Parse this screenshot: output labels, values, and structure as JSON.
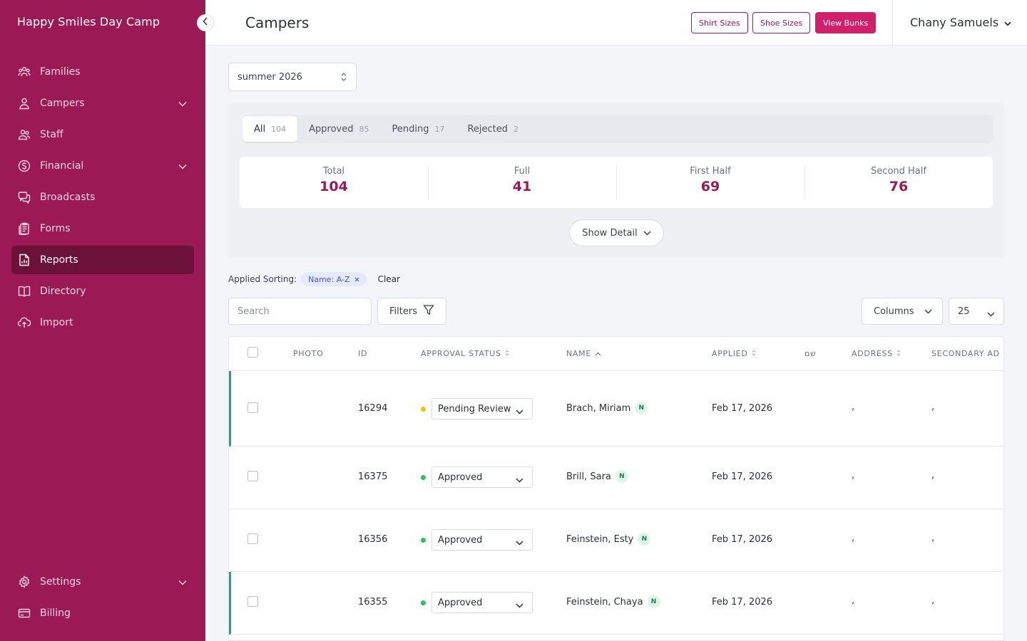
{
  "sidebar": {
    "brand": "Happy Smiles Day Camp",
    "items": [
      {
        "label": "Families",
        "icon": "families-icon"
      },
      {
        "label": "Campers",
        "icon": "camper-icon",
        "expandable": true
      },
      {
        "label": "Staff",
        "icon": "staff-icon"
      },
      {
        "label": "Financial",
        "icon": "dollar-icon",
        "expandable": true
      },
      {
        "label": "Broadcasts",
        "icon": "chat-icon"
      },
      {
        "label": "Forms",
        "icon": "forms-icon"
      },
      {
        "label": "Reports",
        "icon": "report-icon",
        "active": true
      },
      {
        "label": "Directory",
        "icon": "book-icon"
      },
      {
        "label": "Import",
        "icon": "upload-icon"
      }
    ],
    "bottom_items": [
      {
        "label": "Settings",
        "icon": "gear-icon",
        "expandable": true
      },
      {
        "label": "Billing",
        "icon": "card-icon"
      }
    ]
  },
  "header": {
    "title": "Campers",
    "buttons": {
      "shirt": "Shirt Sizes",
      "shoe": "Shoe Sizes",
      "bunks": "View Bunks"
    },
    "user": "Chany Samuels"
  },
  "season": {
    "value": "summer 2026"
  },
  "tabs": [
    {
      "label": "All",
      "count": "104"
    },
    {
      "label": "Approved",
      "count": "85"
    },
    {
      "label": "Pending",
      "count": "17"
    },
    {
      "label": "Rejected",
      "count": "2"
    }
  ],
  "stats": [
    {
      "label": "Total",
      "value": "104"
    },
    {
      "label": "Full",
      "value": "41"
    },
    {
      "label": "First Half",
      "value": "69"
    },
    {
      "label": "Second Half",
      "value": "76"
    }
  ],
  "show_detail": "Show Detail",
  "sorting": {
    "label": "Applied Sorting:",
    "chip": "Name: A-Z",
    "clear": "Clear"
  },
  "search": {
    "placeholder": "Search"
  },
  "filters_label": "Filters",
  "columns_label": "Columns",
  "page_size": "25",
  "table": {
    "headers": {
      "photo": "PHOTO",
      "id": "ID",
      "status": "APPROVAL STATUS",
      "name": "NAME",
      "applied": "APPLIED",
      "hebrew": "שם",
      "address": "ADDRESS",
      "secondary": "SECONDARY AD"
    },
    "rows": [
      {
        "id": "16294",
        "status": "Pending Review",
        "status_color": "#f2c200",
        "name": "Brach, Miriam",
        "badge": "N",
        "applied": "Feb 17, 2026",
        "address": ",",
        "secondary": ","
      },
      {
        "id": "16375",
        "status": "Approved",
        "status_color": "#2fbf5b",
        "name": "Brill, Sara",
        "badge": "N",
        "applied": "Feb 17, 2026",
        "address": ",",
        "secondary": ","
      },
      {
        "id": "16356",
        "status": "Approved",
        "status_color": "#2fbf5b",
        "name": "Feinstein, Esty",
        "badge": "N",
        "applied": "Feb 17, 2026",
        "address": ",",
        "secondary": ","
      },
      {
        "id": "16355",
        "status": "Approved",
        "status_color": "#2fbf5b",
        "name": "Feinstein, Chaya",
        "badge": "N",
        "applied": "Feb 17, 2026",
        "address": ",",
        "secondary": ","
      }
    ]
  },
  "colors": {
    "brand": "#9b1a55",
    "brand_dark": "#6c1238",
    "accent": "#d21f6b",
    "highlight": "#1aa39a"
  }
}
